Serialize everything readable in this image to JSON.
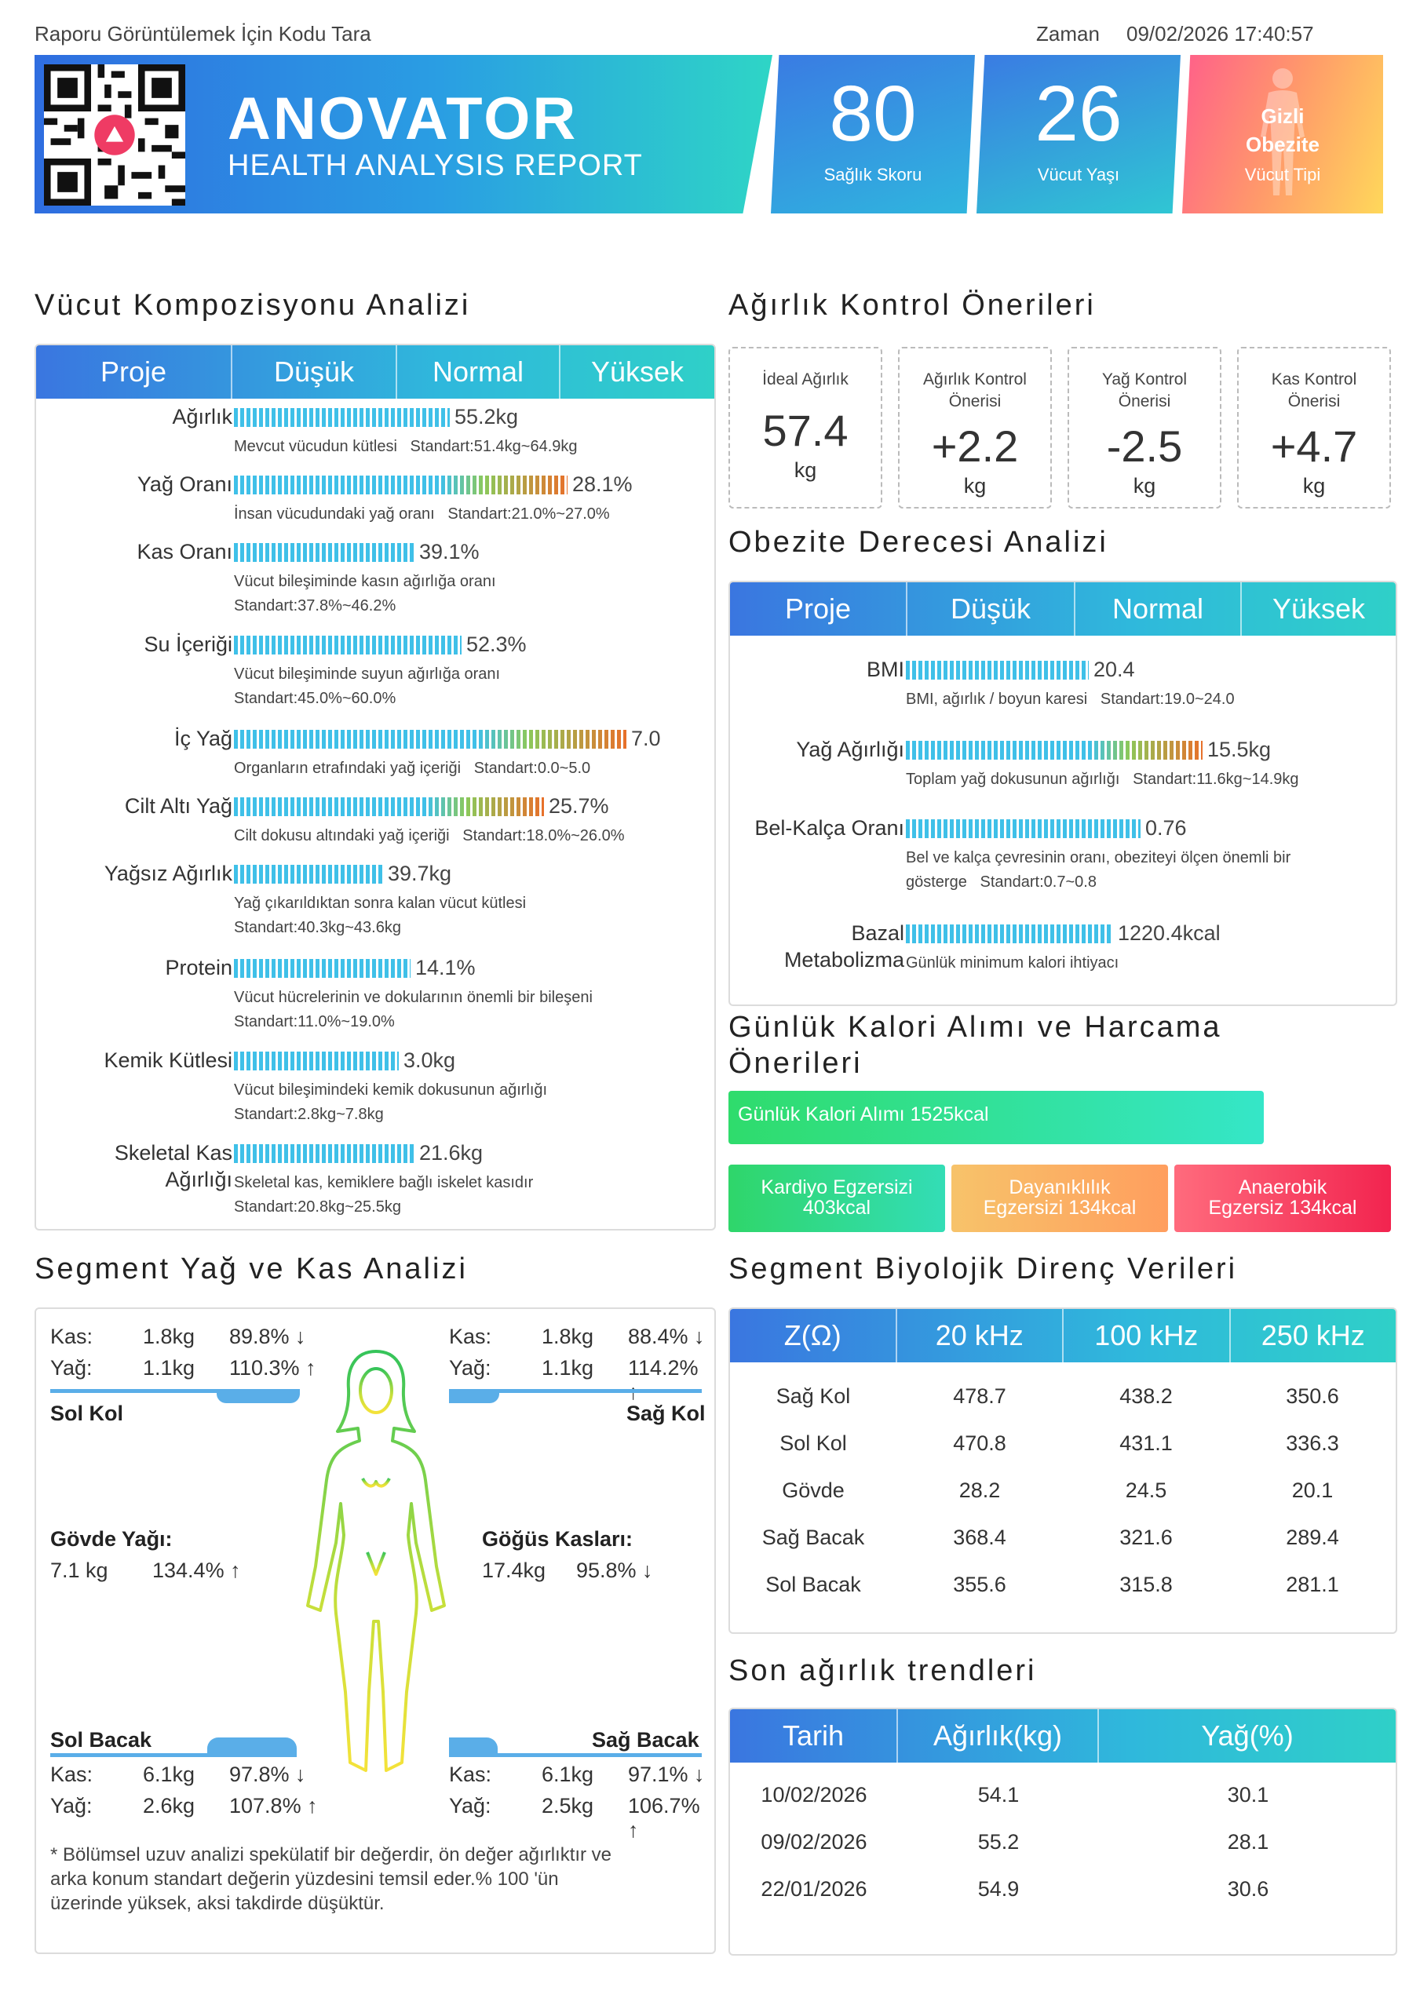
{
  "header": {
    "scan_note": "Raporu Görüntülemek İçin Kodu Tara",
    "time_label": "Zaman",
    "time_value": "09/02/2026 17:40:57",
    "brand": "ANOVATOR",
    "brand_sub": "HEALTH ANALYSIS REPORT",
    "health_score": "80",
    "health_score_label": "Sağlık Skoru",
    "body_age": "26",
    "body_age_label": "Vücut Yaşı",
    "body_type_line1": "Gizli",
    "body_type_line2": "Obezite",
    "body_type_label": "Vücut Tipi"
  },
  "composition": {
    "title": "Vücut Kompozisyonu Analizi",
    "headers": [
      "Proje",
      "Düşük",
      "Normal",
      "Yüksek"
    ],
    "rows": [
      {
        "label": "Ağırlık",
        "value": "55.2kg",
        "desc1": "Mevcut vücudun kütlesi   Standart:51.4kg~64.9kg",
        "desc2": "",
        "level": 0.55
      },
      {
        "label": "Yağ Oranı",
        "value": "28.1%",
        "desc1": "İnsan vücudundaki yağ oranı   Standart:21.0%~27.0%",
        "desc2": "",
        "level": 0.85
      },
      {
        "label": "Kas Oranı",
        "value": "39.1%",
        "desc1": "Vücut bileşiminde kasın ağırlığa oranı",
        "desc2": "Standart:37.8%~46.2%",
        "level": 0.46
      },
      {
        "label": "Su İçeriği",
        "value": "52.3%",
        "desc1": "Vücut bileşiminde suyun ağırlığa oranı",
        "desc2": "Standart:45.0%~60.0%",
        "level": 0.58
      },
      {
        "label": "İç Yağ",
        "value": "7.0",
        "desc1": "Organların etrafındaki yağ içeriği   Standart:0.0~5.0",
        "desc2": "",
        "level": 1.0
      },
      {
        "label": "Cilt Altı Yağ",
        "value": "25.7%",
        "desc1": "Cilt dokusu altındaki yağ içeriği   Standart:18.0%~26.0%",
        "desc2": "",
        "level": 0.79
      },
      {
        "label": "Yağsız Ağırlık",
        "value": "39.7kg",
        "desc1": "Yağ çıkarıldıktan sonra kalan vücut kütlesi",
        "desc2": "Standart:40.3kg~43.6kg",
        "level": 0.38
      },
      {
        "label": "Protein",
        "value": "14.1%",
        "desc1": "Vücut hücrelerinin ve dokularının önemli bir bileşeni",
        "desc2": "Standart:11.0%~19.0%",
        "level": 0.45
      },
      {
        "label": "Kemik Kütlesi",
        "value": "3.0kg",
        "desc1": "Vücut bileşimindeki kemik dokusunun ağırlığı",
        "desc2": "Standart:2.8kg~7.8kg",
        "level": 0.42
      },
      {
        "label": "Skeletal Kas",
        "label2": "Ağırlığı",
        "value": "21.6kg",
        "desc1": "Skeletal kas, kemiklere bağlı iskelet kasıdır",
        "desc2": "Standart:20.8kg~25.5kg",
        "level": 0.46
      }
    ]
  },
  "weight_control": {
    "title": "Ağırlık Kontrol Önerileri",
    "cards": [
      {
        "title1": "İdeal Ağırlık",
        "title2": "",
        "value": "57.4",
        "unit": "kg"
      },
      {
        "title1": "Ağırlık Kontrol",
        "title2": "Önerisi",
        "value": "+2.2",
        "unit": "kg"
      },
      {
        "title1": "Yağ Kontrol",
        "title2": "Önerisi",
        "value": "-2.5",
        "unit": "kg"
      },
      {
        "title1": "Kas Kontrol",
        "title2": "Önerisi",
        "value": "+4.7",
        "unit": "kg"
      }
    ]
  },
  "obesity": {
    "title": "Obezite Derecesi Analizi",
    "headers": [
      "Proje",
      "Düşük",
      "Normal",
      "Yüksek"
    ],
    "rows": [
      {
        "label": "BMI",
        "value": "20.4",
        "desc1": "BMI, ağırlık / boyun karesi   Standart:19.0~24.0",
        "desc2": "",
        "level": 0.53
      },
      {
        "label": "Yağ Ağırlığı",
        "value": "15.5kg",
        "desc1": "Toplam yağ dokusunun ağırlığı   Standart:11.6kg~14.9kg",
        "desc2": "",
        "level": 0.86
      },
      {
        "label": "Bel-Kalça Oranı",
        "value": "0.76",
        "desc1": "Bel ve kalça çevresinin oranı, obeziteyi ölçen önemli bir",
        "desc2": "gösterge   Standart:0.7~0.8",
        "level": 0.68
      },
      {
        "label": "Bazal",
        "label2": "Metabolizma",
        "value": "1220.4kcal",
        "desc1": "Günlük minimum kalori ihtiyacı",
        "desc2": "",
        "level": 0.6
      }
    ]
  },
  "calories": {
    "title1": "Günlük Kalori Alımı ve Harcama",
    "title2": "Önerileri",
    "intake": "Günlük Kalori Alımı    1525kcal",
    "cardio1": "Kardiyo Egzersizi",
    "cardio2": "403kcal",
    "endurance1": "Dayanıklılık",
    "endurance2": "Egzersizi   134kcal",
    "anaerobic1": "Anaerobik",
    "anaerobic2": "Egzersiz   134kcal"
  },
  "segment": {
    "title": "Segment Yağ ve Kas Analizi",
    "kas_label": "Kas:",
    "yag_label": "Yağ:",
    "left_arm": {
      "name": "Sol Kol",
      "kas": "1.8kg",
      "kas_pct": "89.8% ↓",
      "yag": "1.1kg",
      "yag_pct": "110.3% ↑"
    },
    "right_arm": {
      "name": "Sağ Kol",
      "kas": "1.8kg",
      "kas_pct": "88.4% ↓",
      "yag": "1.1kg",
      "yag_pct": "114.2% ↑"
    },
    "trunk_fat": {
      "name": "Gövde Yağı:",
      "value": "7.1 kg",
      "pct": "134.4% ↑"
    },
    "chest_muscle": {
      "name": "Göğüs Kasları:",
      "value": "17.4kg",
      "pct": "95.8% ↓"
    },
    "left_leg": {
      "name": "Sol Bacak",
      "kas": "6.1kg",
      "kas_pct": "97.8% ↓",
      "yag": "2.6kg",
      "yag_pct": "107.8% ↑"
    },
    "right_leg": {
      "name": "Sağ Bacak",
      "kas": "6.1kg",
      "kas_pct": "97.1% ↓",
      "yag": "2.5kg",
      "yag_pct": "106.7% ↑"
    },
    "note1": "* Bölümsel uzuv analizi spekülatif bir değerdir, ön değer ağırlıktır ve",
    "note2": "arka konum standart değerin yüzdesini temsil eder.% 100 'ün",
    "note3": "üzerinde yüksek, aksi takdirde düşüktür."
  },
  "impedance": {
    "title": "Segment Biyolojik Direnç Verileri",
    "headers": [
      "Z(Ω)",
      "20 kHz",
      "100 kHz",
      "250 kHz"
    ],
    "rows": [
      [
        "Sağ Kol",
        "478.7",
        "438.2",
        "350.6"
      ],
      [
        "Sol Kol",
        "470.8",
        "431.1",
        "336.3"
      ],
      [
        "Gövde",
        "28.2",
        "24.5",
        "20.1"
      ],
      [
        "Sağ Bacak",
        "368.4",
        "321.6",
        "289.4"
      ],
      [
        "Sol Bacak",
        "355.6",
        "315.8",
        "281.1"
      ]
    ]
  },
  "trends": {
    "title": "Son ağırlık trendleri",
    "headers": [
      "Tarih",
      "Ağırlık(kg)",
      "Yağ(%)"
    ],
    "rows": [
      [
        "10/02/2026",
        "54.1",
        "30.1"
      ],
      [
        "09/02/2026",
        "55.2",
        "28.1"
      ],
      [
        "22/01/2026",
        "54.9",
        "30.6"
      ]
    ]
  },
  "colors": {
    "accent_blue": "#2f6de0",
    "accent_teal": "#2ed5c6",
    "bar_normal": "#3fc0e8",
    "bar_high": "#e8702a"
  }
}
